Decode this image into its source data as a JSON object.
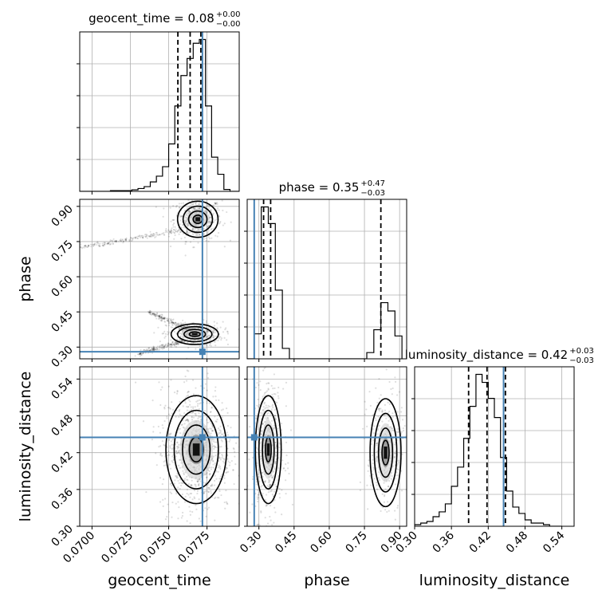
{
  "chart_data": {
    "type": "corner",
    "truth_color": "#4682b4",
    "parameters": [
      {
        "name": "geocent_time",
        "label": "geocent_time",
        "title": "geocent_time = 0.08",
        "title_plus": "+0.00",
        "title_minus": "−0.00",
        "range": [
          0.0692,
          0.0796
        ],
        "ticks": [
          0.07,
          0.0725,
          0.075,
          0.0775
        ],
        "tick_labels": [
          "0.0700",
          "0.0725",
          "0.0750",
          "0.0775"
        ],
        "truth": 0.0772,
        "quantiles": [
          0.0756,
          0.0764,
          0.0771
        ],
        "hist_edges": [
          0.0692,
          0.0694,
          0.0696,
          0.0698,
          0.07,
          0.0702,
          0.0704,
          0.0706,
          0.0708,
          0.071,
          0.0712,
          0.0714,
          0.0716,
          0.0718,
          0.072,
          0.0722,
          0.0724,
          0.0726,
          0.0728,
          0.073,
          0.0732,
          0.0734,
          0.0736,
          0.0738,
          0.074,
          0.0742,
          0.0744,
          0.0746,
          0.0748,
          0.075,
          0.0752,
          0.0754,
          0.0756,
          0.0758,
          0.076,
          0.0762,
          0.0764,
          0.0766,
          0.0768,
          0.077,
          0.0772,
          0.0774,
          0.0776,
          0.0778,
          0.078,
          0.0782,
          0.0784,
          0.0786,
          0.0788,
          0.079,
          0.0792,
          0.0794,
          0.0796
        ],
        "hist_counts": [
          0,
          0,
          0,
          0,
          0,
          0,
          0,
          0,
          0,
          0,
          0.4,
          0.4,
          0.4,
          0.4,
          0.4,
          0.4,
          0.4,
          0.8,
          0.8,
          1.5,
          1.5,
          2.5,
          2.5,
          5,
          5,
          8,
          8,
          13,
          13,
          25,
          25,
          45,
          45,
          61,
          61,
          70,
          70,
          78,
          78,
          80,
          80,
          45,
          45,
          18,
          18,
          9,
          9,
          1,
          1,
          0,
          0,
          0
        ]
      },
      {
        "name": "phase",
        "label": "phase",
        "title": "phase = 0.35",
        "title_plus": "+0.47",
        "title_minus": "−0.03",
        "range": [
          0.25,
          0.93
        ],
        "ticks": [
          0.3,
          0.45,
          0.6,
          0.75,
          0.9
        ],
        "tick_labels": [
          "0.30",
          "0.45",
          "0.60",
          "0.75",
          "0.90"
        ],
        "truth": 0.28,
        "quantiles": [
          0.32,
          0.35,
          0.82
        ],
        "hist_edges": [
          0.25,
          0.28,
          0.31,
          0.34,
          0.37,
          0.4,
          0.43,
          0.46,
          0.49,
          0.52,
          0.55,
          0.58,
          0.61,
          0.64,
          0.67,
          0.7,
          0.73,
          0.76,
          0.79,
          0.82,
          0.85,
          0.88,
          0.91
        ],
        "hist_counts": [
          0,
          12,
          73,
          65,
          33,
          5,
          0,
          0,
          0,
          0,
          0,
          0,
          0,
          0,
          0,
          0,
          0,
          3,
          14,
          27,
          23,
          11
        ]
      },
      {
        "name": "luminosity_distance",
        "label": "luminosity_distance",
        "title": "luminosity_distance = 0.42",
        "title_plus": "+0.03",
        "title_minus": "−0.03",
        "range": [
          0.3,
          0.56
        ],
        "ticks": [
          0.3,
          0.36,
          0.42,
          0.48,
          0.54
        ],
        "tick_labels": [
          "0.30",
          "0.36",
          "0.42",
          "0.48",
          "0.54"
        ],
        "truth": 0.445,
        "quantiles": [
          0.388,
          0.418,
          0.448
        ],
        "hist_edges": [
          0.3,
          0.31,
          0.32,
          0.33,
          0.34,
          0.35,
          0.36,
          0.37,
          0.38,
          0.39,
          0.4,
          0.41,
          0.42,
          0.43,
          0.44,
          0.45,
          0.46,
          0.47,
          0.48,
          0.49,
          0.5,
          0.51,
          0.52,
          0.53,
          0.54
        ],
        "hist_counts": [
          1,
          2,
          3,
          6,
          9,
          14,
          25,
          37,
          55,
          75,
          95,
          90,
          80,
          68,
          43,
          22,
          12,
          8,
          4,
          2,
          2,
          1,
          0,
          0
        ]
      }
    ],
    "density_pairs": [
      {
        "x": "geocent_time",
        "y": "phase",
        "modes": [
          {
            "cx": 0.0769,
            "cy": 0.845,
            "sx": 0.0006,
            "sy": 0.035,
            "weight": 0.55
          },
          {
            "cx": 0.0767,
            "cy": 0.355,
            "sx": 0.0007,
            "sy": 0.02,
            "weight": 0.45
          }
        ],
        "tails": [
          {
            "from": [
              0.0692,
              0.725
            ],
            "to": [
              0.076,
              0.8
            ]
          },
          {
            "from": [
              0.0737,
              0.45
            ],
            "to": [
              0.0765,
              0.37
            ]
          },
          {
            "from": [
              0.073,
              0.27
            ],
            "to": [
              0.076,
              0.33
            ]
          }
        ]
      },
      {
        "x": "geocent_time",
        "y": "luminosity_distance",
        "modes": [
          {
            "cx": 0.0768,
            "cy": 0.425,
            "sx": 0.0009,
            "sy": 0.04,
            "weight": 1.0
          }
        ],
        "tails": []
      },
      {
        "x": "phase",
        "y": "luminosity_distance",
        "modes": [
          {
            "cx": 0.34,
            "cy": 0.425,
            "sx": 0.025,
            "sy": 0.04,
            "weight": 0.62
          },
          {
            "cx": 0.84,
            "cy": 0.42,
            "sx": 0.03,
            "sy": 0.04,
            "weight": 0.38
          }
        ],
        "tails": []
      }
    ]
  }
}
